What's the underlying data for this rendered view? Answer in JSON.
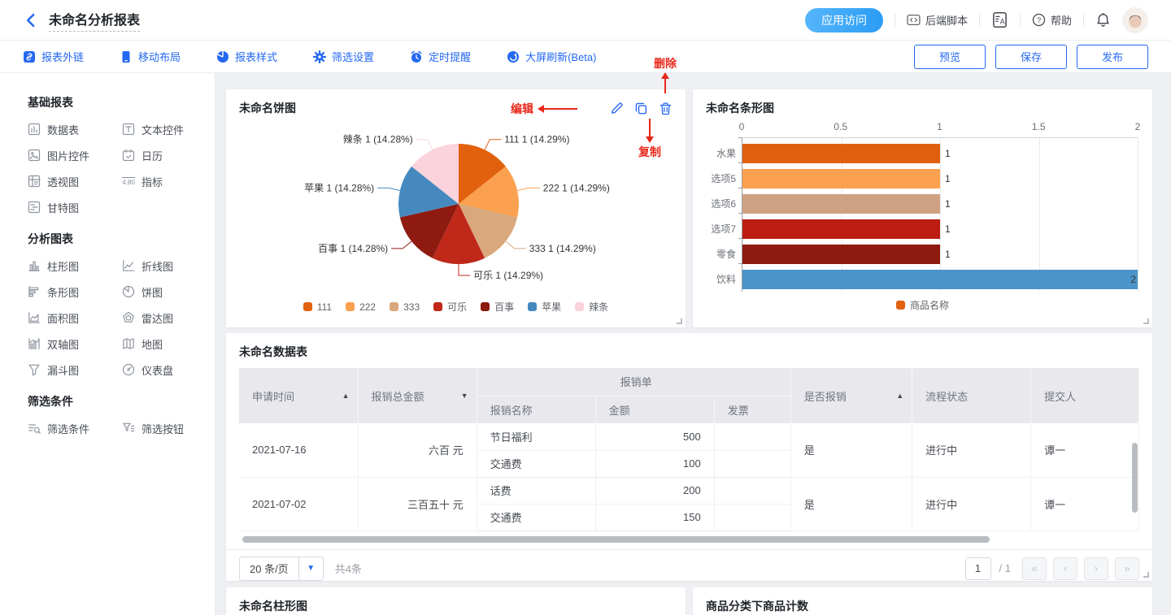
{
  "header": {
    "title": "未命名分析报表",
    "app_access": "应用访问",
    "backend_script": "后端脚本",
    "help": "帮助"
  },
  "toolbar": {
    "items": [
      {
        "label": "报表外链",
        "icon": "link"
      },
      {
        "label": "移动布局",
        "icon": "mobile"
      },
      {
        "label": "报表样式",
        "icon": "pie"
      },
      {
        "label": "筛选设置",
        "icon": "gear"
      },
      {
        "label": "定时提醒",
        "icon": "alarm"
      },
      {
        "label": "大屏刷新(Beta)",
        "icon": "refresh"
      }
    ],
    "actions": [
      "预览",
      "保存",
      "发布"
    ]
  },
  "sidebar": {
    "sections": [
      {
        "title": "基础报表",
        "items": [
          {
            "label": "数据表",
            "icon": "data-table"
          },
          {
            "label": "文本控件",
            "icon": "text"
          },
          {
            "label": "图片控件",
            "icon": "image"
          },
          {
            "label": "日历",
            "icon": "calendar"
          },
          {
            "label": "透视图",
            "icon": "pivot"
          },
          {
            "label": "指标",
            "icon": "metric"
          },
          {
            "label": "甘特图",
            "icon": "gantt"
          }
        ]
      },
      {
        "title": "分析图表",
        "items": [
          {
            "label": "柱形图",
            "icon": "column"
          },
          {
            "label": "折线图",
            "icon": "line"
          },
          {
            "label": "条形图",
            "icon": "bar-h"
          },
          {
            "label": "饼图",
            "icon": "pie-s"
          },
          {
            "label": "面积图",
            "icon": "area"
          },
          {
            "label": "雷达图",
            "icon": "radar"
          },
          {
            "label": "双轴图",
            "icon": "dual-axis"
          },
          {
            "label": "地图",
            "icon": "map"
          },
          {
            "label": "漏斗图",
            "icon": "funnel"
          },
          {
            "label": "仪表盘",
            "icon": "gauge"
          }
        ]
      },
      {
        "title": "筛选条件",
        "items": [
          {
            "label": "筛选条件",
            "icon": "filter"
          },
          {
            "label": "筛选按钮",
            "icon": "filter-btn"
          }
        ]
      }
    ]
  },
  "annotations": {
    "edit": "编辑",
    "copy": "复制",
    "delete": "删除",
    "color": "#e8281a"
  },
  "cards": {
    "pie": {
      "title": "未命名饼图"
    },
    "bar": {
      "title": "未命名条形图"
    },
    "table": {
      "title": "未命名数据表"
    },
    "bottom_left": {
      "title": "未命名柱形图"
    },
    "bottom_right": {
      "title": "商品分类下商品计数"
    }
  },
  "chart_data": [
    {
      "type": "pie",
      "title": "未命名饼图",
      "legend_position": "bottom",
      "series": [
        {
          "name": "111",
          "value": 1,
          "label": "111 1 (14.29%)",
          "color": "#e2610e"
        },
        {
          "name": "222",
          "value": 1,
          "label": "222 1 (14.29%)",
          "color": "#fba04e"
        },
        {
          "name": "333",
          "value": 1,
          "label": "333 1 (14.29%)",
          "color": "#d9a87c"
        },
        {
          "name": "可乐",
          "value": 1,
          "label": "可乐 1 (14.29%)",
          "color": "#c0281a"
        },
        {
          "name": "百事",
          "value": 1,
          "label": "百事 1 (14.28%)",
          "color": "#8e1a10"
        },
        {
          "name": "苹果",
          "value": 1,
          "label": "苹果 1 (14.28%)",
          "color": "#4589bf"
        },
        {
          "name": "辣条",
          "value": 1,
          "label": "辣条 1 (14.28%)",
          "color": "#fbd3dc"
        }
      ]
    },
    {
      "type": "bar",
      "orientation": "horizontal",
      "title": "未命名条形图",
      "categories": [
        "水果",
        "选项5",
        "选项6",
        "选项7",
        "零食",
        "饮料"
      ],
      "values": [
        1,
        1,
        1,
        1,
        1,
        2
      ],
      "colors": [
        "#e05f0f",
        "#fba04e",
        "#cfa183",
        "#bb1d12",
        "#8e1a10",
        "#4a94c9"
      ],
      "xlim": [
        0,
        2
      ],
      "xticks": [
        "0",
        "0.5",
        "1",
        "1.5",
        "2"
      ],
      "legend": [
        {
          "label": "商品名称",
          "color": "#e2610e"
        }
      ]
    }
  ],
  "table": {
    "columns": [
      {
        "label": "申请时间",
        "sort": "asc",
        "width": "13.2%"
      },
      {
        "label": "报销总金额",
        "sort": "desc",
        "width": "13.2%"
      },
      {
        "label": "报销单",
        "children": [
          {
            "label": "报销名称",
            "width": "13.2%"
          },
          {
            "label": "金额",
            "width": "13.2%",
            "align": "right"
          },
          {
            "label": "发票",
            "width": "8.5%"
          }
        ]
      },
      {
        "label": "是否报销",
        "sort": "asc",
        "width": "13.5%"
      },
      {
        "label": "流程状态",
        "width": "13.2%"
      },
      {
        "label": "提交人",
        "width": "12.0%"
      }
    ],
    "rows": [
      {
        "date": "2021-07-16",
        "total": "六百 元",
        "sub": [
          {
            "name": "节日福利",
            "amount": "500",
            "invoice": ""
          },
          {
            "name": "交通费",
            "amount": "100",
            "invoice": ""
          }
        ],
        "reimbursed": "是",
        "status": "进行中",
        "submitter": "谭一"
      },
      {
        "date": "2021-07-02",
        "total": "三百五十 元",
        "sub": [
          {
            "name": "话费",
            "amount": "200",
            "invoice": ""
          },
          {
            "name": "交通费",
            "amount": "150",
            "invoice": ""
          }
        ],
        "reimbursed": "是",
        "status": "进行中",
        "submitter": "谭一"
      }
    ],
    "pagination": {
      "page_size_label": "20 条/页",
      "total_label": "共4条",
      "page": "1",
      "total_pages_label": "/ 1",
      "nav": [
        "«",
        "‹",
        "›",
        "»"
      ]
    }
  }
}
